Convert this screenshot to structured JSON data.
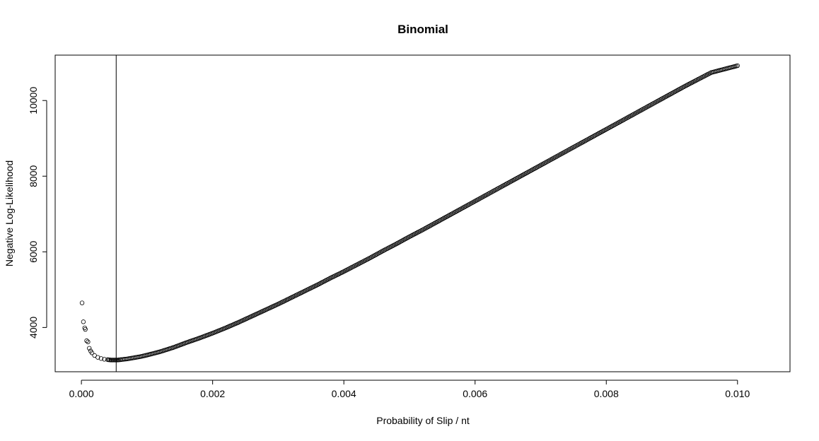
{
  "chart_data": {
    "type": "scatter",
    "title": "Binomial",
    "xlabel": "Probability of Slip / nt",
    "ylabel": "Negative Log-Likelihood",
    "xlim": [
      -0.0004,
      0.0108
    ],
    "ylim": [
      2830,
      11200
    ],
    "x_ticks": [
      0.0,
      0.002,
      0.004,
      0.006,
      0.008,
      0.01
    ],
    "x_tick_labels": [
      "0.000",
      "0.002",
      "0.004",
      "0.006",
      "0.008",
      "0.010"
    ],
    "y_ticks": [
      4000,
      6000,
      8000,
      10000
    ],
    "y_tick_labels": [
      "4000",
      "6000",
      "8000",
      "10000"
    ],
    "vline_x": 0.00053,
    "grid": false,
    "legend": "none",
    "marker": "open-circle",
    "series": [
      {
        "x": [
          1e-05,
          3e-05,
          5e-05,
          6e-05,
          8e-05,
          0.0001,
          0.00012,
          0.00014,
          0.00016,
          0.0002,
          0.00025,
          0.0003,
          0.00035,
          0.0004,
          0.00045,
          0.0005,
          0.00055,
          0.0006,
          0.0007,
          0.0008,
          0.0009,
          0.001,
          0.0012,
          0.0014,
          0.0016,
          0.0018,
          0.002,
          0.0022,
          0.0024,
          0.0026,
          0.0028,
          0.003,
          0.0032,
          0.0034,
          0.0036,
          0.0038,
          0.004,
          0.0042,
          0.0044,
          0.0046,
          0.0048,
          0.005,
          0.0052,
          0.0054,
          0.0056,
          0.0058,
          0.006,
          0.0062,
          0.0064,
          0.0066,
          0.0068,
          0.007,
          0.0072,
          0.0074,
          0.0076,
          0.0078,
          0.008,
          0.0082,
          0.0084,
          0.0086,
          0.0088,
          0.009,
          0.0092,
          0.0094,
          0.0096,
          0.0098,
          0.01
        ],
        "y": [
          4650,
          4150,
          3990,
          3950,
          3650,
          3620,
          3450,
          3380,
          3330,
          3260,
          3210,
          3180,
          3160,
          3150,
          3140,
          3140,
          3140,
          3150,
          3170,
          3200,
          3230,
          3270,
          3360,
          3470,
          3600,
          3720,
          3850,
          3990,
          4140,
          4300,
          4460,
          4620,
          4790,
          4960,
          5130,
          5310,
          5480,
          5660,
          5840,
          6030,
          6210,
          6400,
          6580,
          6770,
          6960,
          7150,
          7340,
          7530,
          7720,
          7910,
          8100,
          8290,
          8480,
          8670,
          8860,
          9050,
          9240,
          9430,
          9620,
          9810,
          10000,
          10190,
          10380,
          10560,
          10740,
          10830,
          10920
        ]
      }
    ]
  }
}
